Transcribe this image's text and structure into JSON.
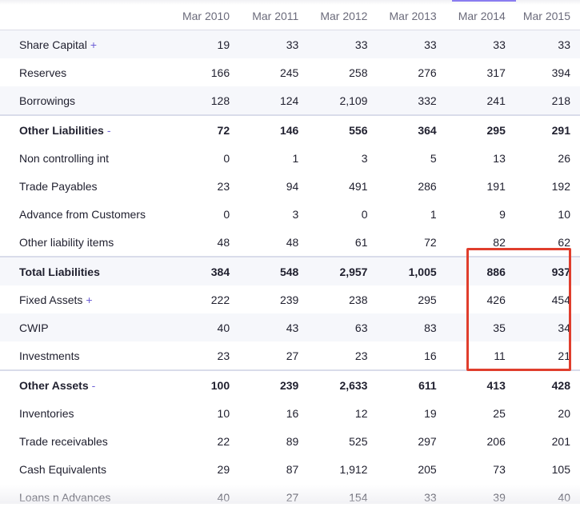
{
  "table": {
    "columns": [
      "Mar 2010",
      "Mar 2011",
      "Mar 2012",
      "Mar 2013",
      "Mar 2014",
      "Mar 2015"
    ],
    "rows": [
      {
        "label": "Share Capital",
        "toggle": "+",
        "values": [
          "19",
          "33",
          "33",
          "33",
          "33",
          "33"
        ]
      },
      {
        "label": "Reserves",
        "toggle": "",
        "values": [
          "166",
          "245",
          "258",
          "276",
          "317",
          "394"
        ]
      },
      {
        "label": "Borrowings",
        "toggle": "",
        "values": [
          "128",
          "124",
          "2,109",
          "332",
          "241",
          "218"
        ]
      },
      {
        "label": "Other Liabilities",
        "toggle": "-",
        "values": [
          "72",
          "146",
          "556",
          "364",
          "295",
          "291"
        ]
      },
      {
        "label": "Non controlling int",
        "toggle": "",
        "values": [
          "0",
          "1",
          "3",
          "5",
          "13",
          "26"
        ]
      },
      {
        "label": "Trade Payables",
        "toggle": "",
        "values": [
          "23",
          "94",
          "491",
          "286",
          "191",
          "192"
        ]
      },
      {
        "label": "Advance from Customers",
        "toggle": "",
        "values": [
          "0",
          "3",
          "0",
          "1",
          "9",
          "10"
        ]
      },
      {
        "label": "Other liability items",
        "toggle": "",
        "values": [
          "48",
          "48",
          "61",
          "72",
          "82",
          "62"
        ]
      },
      {
        "label": "Total Liabilities",
        "toggle": "",
        "values": [
          "384",
          "548",
          "2,957",
          "1,005",
          "886",
          "937"
        ]
      },
      {
        "label": "Fixed Assets",
        "toggle": "+",
        "values": [
          "222",
          "239",
          "238",
          "295",
          "426",
          "454"
        ]
      },
      {
        "label": "CWIP",
        "toggle": "",
        "values": [
          "40",
          "43",
          "63",
          "83",
          "35",
          "34"
        ]
      },
      {
        "label": "Investments",
        "toggle": "",
        "values": [
          "23",
          "27",
          "23",
          "16",
          "11",
          "21"
        ]
      },
      {
        "label": "Other Assets",
        "toggle": "-",
        "values": [
          "100",
          "239",
          "2,633",
          "611",
          "413",
          "428"
        ]
      },
      {
        "label": "Inventories",
        "toggle": "",
        "values": [
          "10",
          "16",
          "12",
          "19",
          "25",
          "20"
        ]
      },
      {
        "label": "Trade receivables",
        "toggle": "",
        "values": [
          "22",
          "89",
          "525",
          "297",
          "206",
          "201"
        ]
      },
      {
        "label": "Cash Equivalents",
        "toggle": "",
        "values": [
          "29",
          "87",
          "1,912",
          "205",
          "73",
          "105"
        ]
      },
      {
        "label": "Loans n Advances",
        "toggle": "",
        "values": [
          "40",
          "27",
          "154",
          "33",
          "39",
          "40"
        ]
      }
    ]
  },
  "colors": {
    "accent": "#6d5fd6",
    "highlight": "#e03e2d"
  }
}
